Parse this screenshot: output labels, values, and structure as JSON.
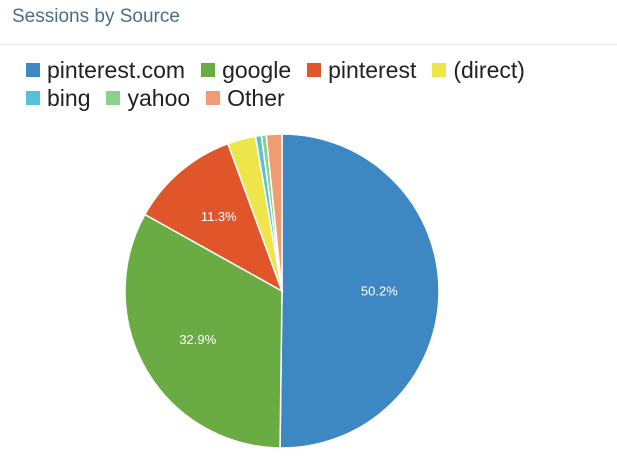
{
  "chart_data": {
    "type": "pie",
    "title": "Sessions by Source",
    "legend_position": "top",
    "slices": [
      {
        "label": "pinterest.com",
        "value": 50.2,
        "color": "#3d87c3",
        "display": "50.2%"
      },
      {
        "label": "google",
        "value": 32.9,
        "color": "#6aab44",
        "display": "32.9%"
      },
      {
        "label": "pinterest",
        "value": 11.3,
        "color": "#e0562a",
        "display": "11.3%"
      },
      {
        "label": "(direct)",
        "value": 2.9,
        "color": "#eee54a",
        "display": ""
      },
      {
        "label": "bing",
        "value": 0.6,
        "color": "#55c2dc",
        "display": ""
      },
      {
        "label": "yahoo",
        "value": 0.5,
        "color": "#8ad28a",
        "display": ""
      },
      {
        "label": "Other",
        "value": 1.6,
        "color": "#ef9c72",
        "display": ""
      }
    ]
  }
}
